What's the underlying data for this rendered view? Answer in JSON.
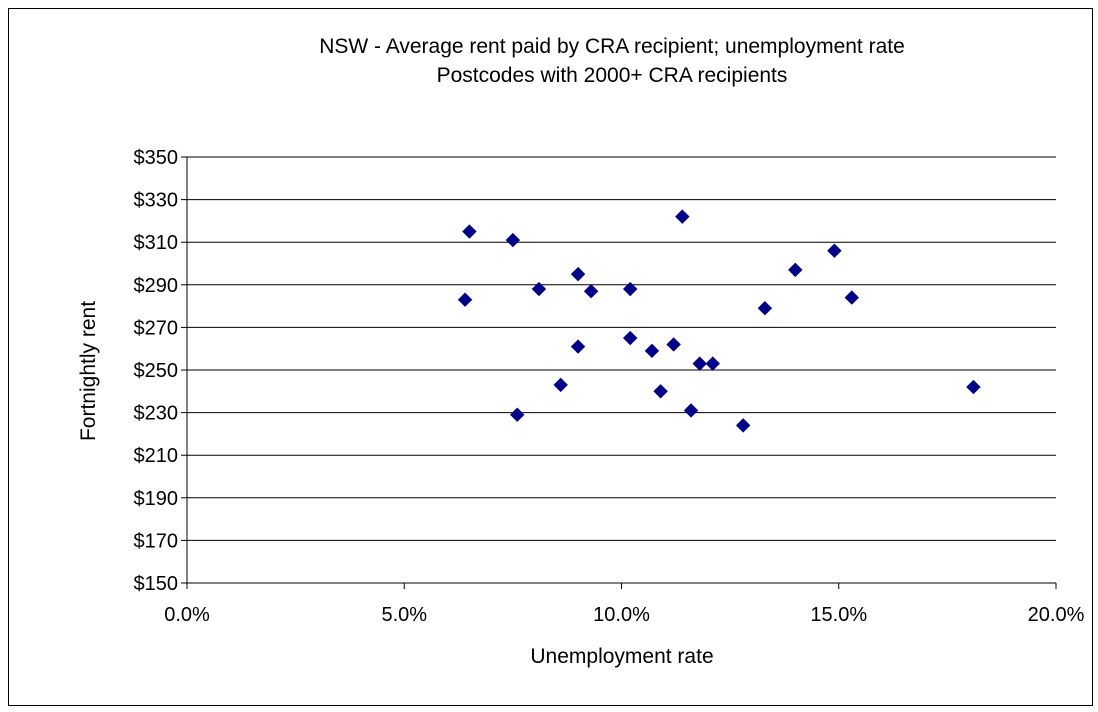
{
  "chart_data": {
    "type": "scatter",
    "title": "NSW - Average rent paid by CRA recipient; unemployment rate",
    "subtitle": "Postcodes with 2000+ CRA recipients",
    "xlabel": "Unemployment rate",
    "ylabel": "Fortnightly rent",
    "xlim": [
      0,
      20
    ],
    "ylim": [
      150,
      350
    ],
    "x_ticks": [
      0,
      5,
      10,
      15,
      20
    ],
    "y_ticks": [
      150,
      170,
      190,
      210,
      230,
      250,
      270,
      290,
      310,
      330,
      350
    ],
    "x_tick_labels": [
      "0.0%",
      "5.0%",
      "10.0%",
      "15.0%",
      "20.0%"
    ],
    "y_tick_labels": [
      "$150",
      "$170",
      "$190",
      "$210",
      "$230",
      "$250",
      "$270",
      "$290",
      "$310",
      "$330",
      "$350"
    ],
    "grid": "horizontal",
    "marker_color": "#00008B",
    "points": [
      {
        "x": 6.4,
        "y": 283
      },
      {
        "x": 6.5,
        "y": 315
      },
      {
        "x": 7.5,
        "y": 311
      },
      {
        "x": 7.6,
        "y": 229
      },
      {
        "x": 8.1,
        "y": 288
      },
      {
        "x": 8.6,
        "y": 243
      },
      {
        "x": 9.0,
        "y": 295
      },
      {
        "x": 9.0,
        "y": 261
      },
      {
        "x": 9.3,
        "y": 287
      },
      {
        "x": 10.2,
        "y": 288
      },
      {
        "x": 10.2,
        "y": 265
      },
      {
        "x": 10.7,
        "y": 259
      },
      {
        "x": 10.9,
        "y": 240
      },
      {
        "x": 11.2,
        "y": 262
      },
      {
        "x": 11.4,
        "y": 322
      },
      {
        "x": 11.6,
        "y": 231
      },
      {
        "x": 11.8,
        "y": 253
      },
      {
        "x": 12.1,
        "y": 253
      },
      {
        "x": 12.8,
        "y": 224
      },
      {
        "x": 13.3,
        "y": 279
      },
      {
        "x": 14.0,
        "y": 297
      },
      {
        "x": 14.9,
        "y": 306
      },
      {
        "x": 15.3,
        "y": 284
      },
      {
        "x": 18.1,
        "y": 242
      }
    ]
  }
}
